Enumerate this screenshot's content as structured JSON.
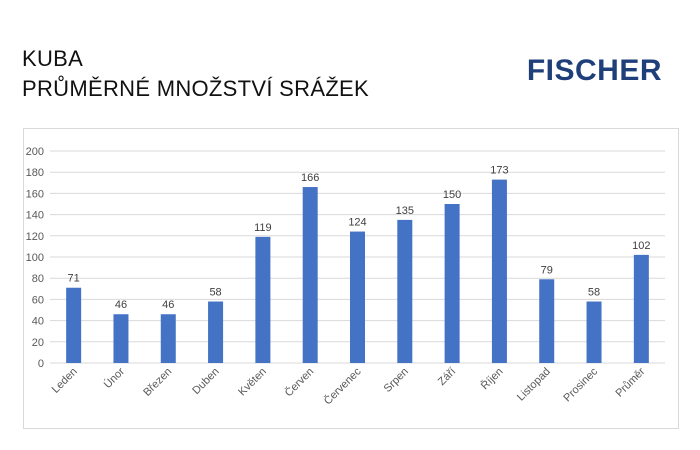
{
  "header": {
    "title_line1": "KUBA",
    "title_line2": "PRŮMĚRNÉ MNOŽSTVÍ SRÁŽEK",
    "logo_text": "FISCHER"
  },
  "colors": {
    "bar": "#4472c4",
    "grid": "#d9d9d9",
    "logo": "#1f3f7a"
  },
  "chart_data": {
    "type": "bar",
    "categories": [
      "Leden",
      "Únor",
      "Březen",
      "Duben",
      "Květen",
      "Červen",
      "Červenec",
      "Srpen",
      "Září",
      "Říjen",
      "Listopad",
      "Prosinec",
      "Průměr"
    ],
    "values": [
      71,
      46,
      46,
      58,
      119,
      166,
      124,
      135,
      150,
      173,
      79,
      58,
      102
    ],
    "title": "",
    "xlabel": "",
    "ylabel": "",
    "ylim": [
      0,
      200
    ],
    "yticks": [
      0,
      20,
      40,
      60,
      80,
      100,
      120,
      140,
      160,
      180,
      200
    ],
    "grid": true,
    "data_labels": true,
    "legend": "none"
  }
}
